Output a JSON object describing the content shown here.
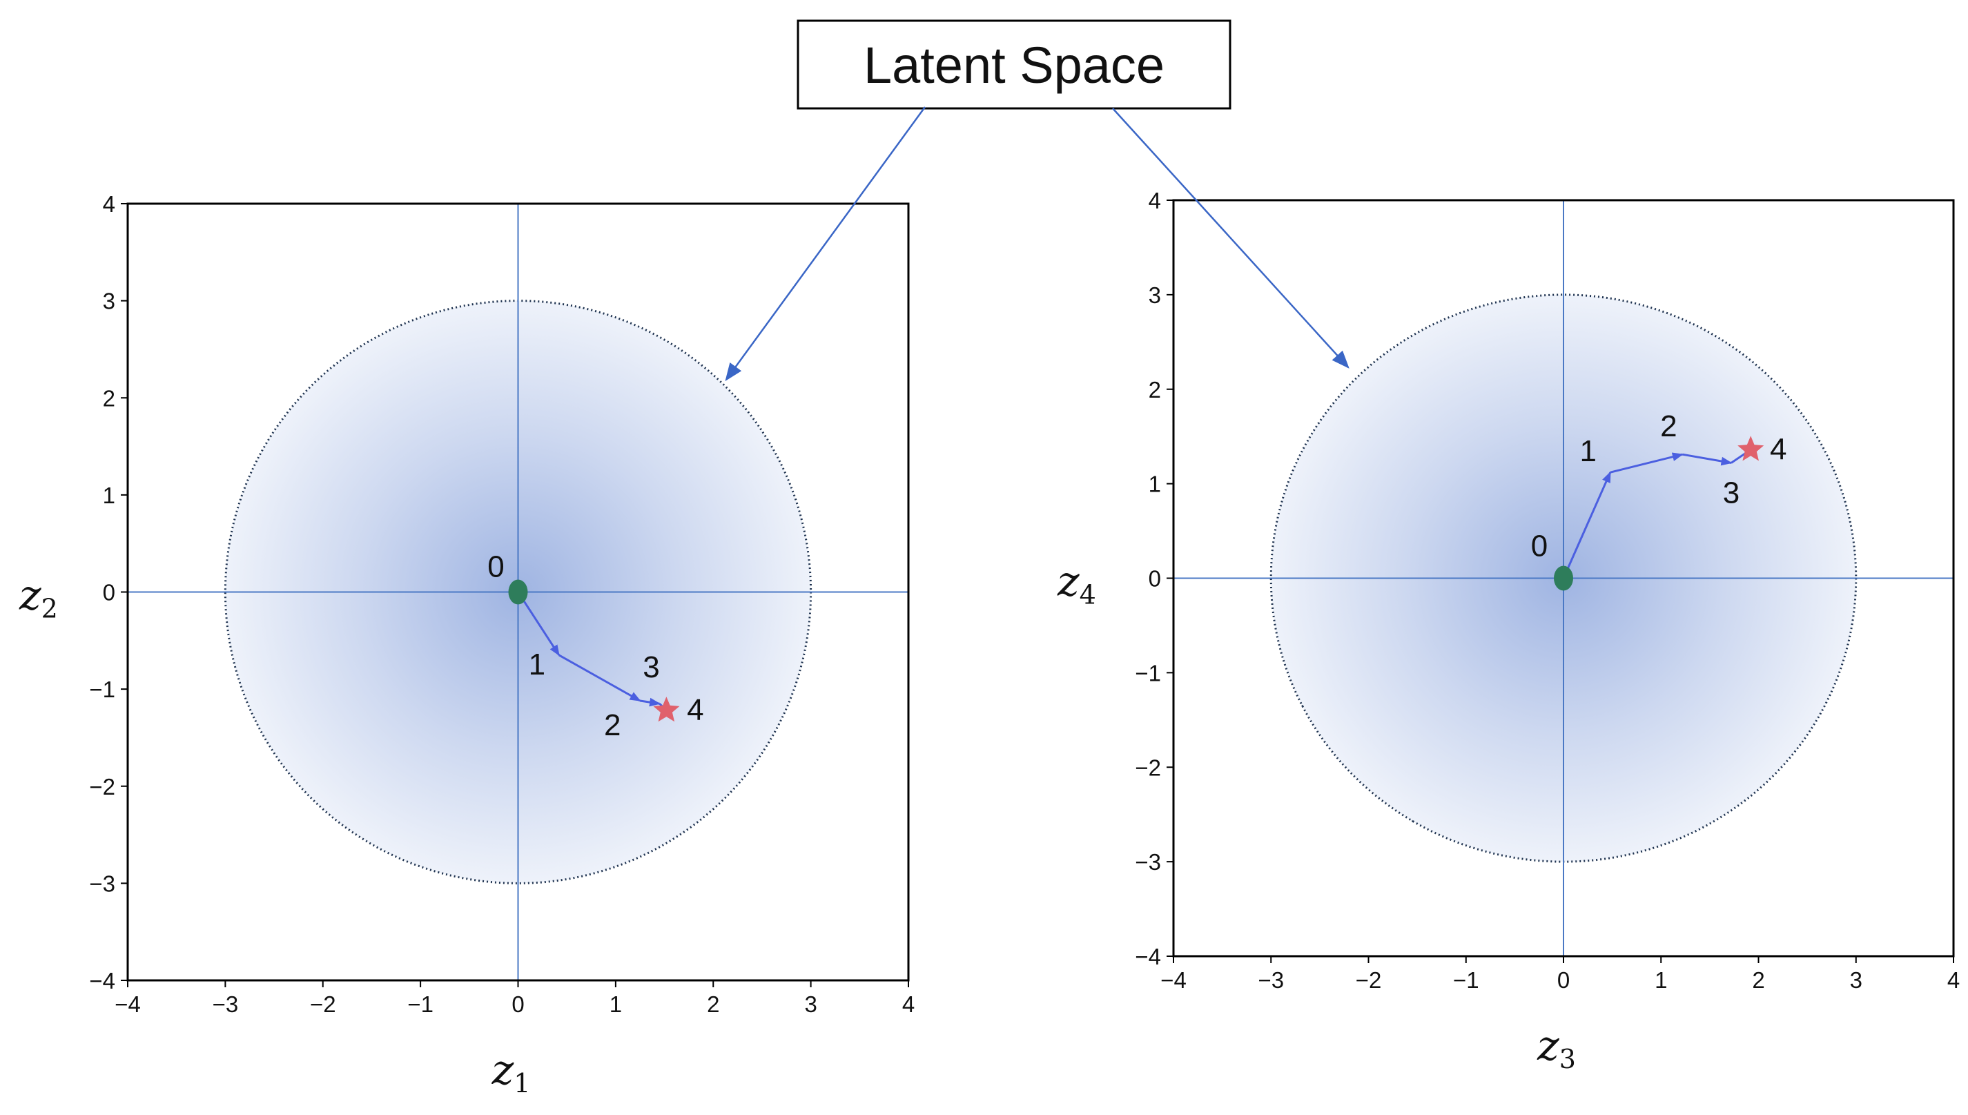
{
  "callout": {
    "label": "Latent Space"
  },
  "colors": {
    "axis_line": "#4a78c4",
    "trajectory": "#4b5fe0",
    "start_point": "#2e7d5b",
    "end_star": "#e0616c",
    "circle_boundary": "#1f3350",
    "gradient_center": "#9fb4e2",
    "gradient_edge": "#eef2fa",
    "callout_arrow": "#3a66c6"
  },
  "chart_data": [
    {
      "type": "scatter",
      "title": "",
      "xlabel": "z",
      "xlabel_sub": "1",
      "ylabel": "z",
      "ylabel_sub": "2",
      "xlim": [
        -4,
        4
      ],
      "ylim": [
        -4,
        4
      ],
      "xticks": [
        "−4",
        "−3",
        "−2",
        "−1",
        "0",
        "1",
        "2",
        "3",
        "4"
      ],
      "yticks": [
        "−4",
        "−3",
        "−2",
        "−1",
        "0",
        "1",
        "2",
        "3",
        "4"
      ],
      "circle_radius": 3,
      "trajectory": [
        {
          "label": "0",
          "x": 0.0,
          "y": 0.0
        },
        {
          "label": "1",
          "x": 0.42,
          "y": -0.65
        },
        {
          "label": "2",
          "x": 1.25,
          "y": -1.12
        },
        {
          "label": "3",
          "x": 1.45,
          "y": -1.15
        },
        {
          "label": "4",
          "x": 1.52,
          "y": -1.22
        }
      ]
    },
    {
      "type": "scatter",
      "title": "",
      "xlabel": "z",
      "xlabel_sub": "3",
      "ylabel": "z",
      "ylabel_sub": "4",
      "xlim": [
        -4,
        4
      ],
      "ylim": [
        -4,
        4
      ],
      "xticks": [
        "−4",
        "−3",
        "−2",
        "−1",
        "0",
        "1",
        "2",
        "3",
        "4"
      ],
      "yticks": [
        "−4",
        "−3",
        "−2",
        "−1",
        "0",
        "1",
        "2",
        "3",
        "4"
      ],
      "circle_radius": 3,
      "trajectory": [
        {
          "label": "0",
          "x": 0.0,
          "y": 0.0
        },
        {
          "label": "1",
          "x": 0.48,
          "y": 1.12
        },
        {
          "label": "2",
          "x": 1.22,
          "y": 1.31
        },
        {
          "label": "3",
          "x": 1.72,
          "y": 1.22
        },
        {
          "label": "4",
          "x": 1.92,
          "y": 1.36
        }
      ]
    }
  ]
}
